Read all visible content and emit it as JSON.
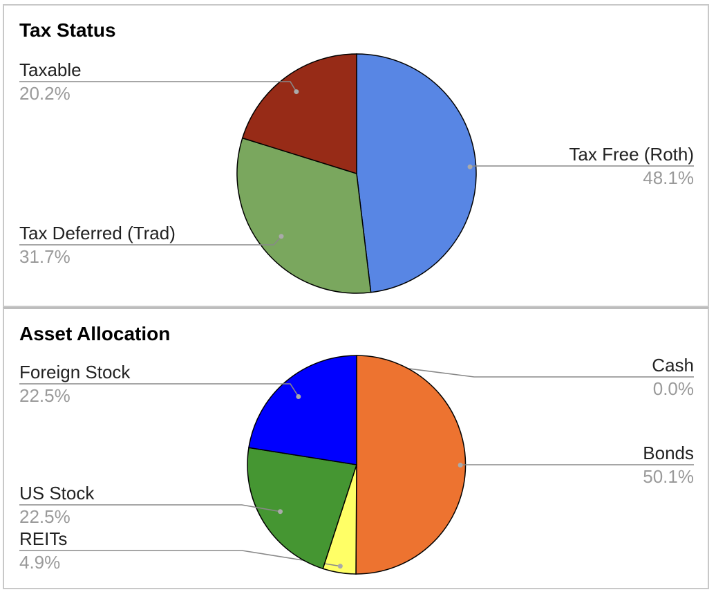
{
  "chart_data": [
    {
      "type": "pie",
      "title": "Tax Status",
      "slices": [
        {
          "label": "Tax Free (Roth)",
          "value": 48.1,
          "display": "48.1%",
          "color": "#5886e4"
        },
        {
          "label": "Tax Deferred (Trad)",
          "value": 31.7,
          "display": "31.7%",
          "color": "#7aa75e"
        },
        {
          "label": "Taxable",
          "value": 20.2,
          "display": "20.2%",
          "color": "#972b17"
        }
      ]
    },
    {
      "type": "pie",
      "title": "Asset Allocation",
      "slices": [
        {
          "label": "Cash",
          "value": 0.0,
          "display": "0.0%",
          "color": "#ffffff"
        },
        {
          "label": "Bonds",
          "value": 50.1,
          "display": "50.1%",
          "color": "#ed7330"
        },
        {
          "label": "REITs",
          "value": 4.9,
          "display": "4.9%",
          "color": "#ffff66"
        },
        {
          "label": "US Stock",
          "value": 22.5,
          "display": "22.5%",
          "color": "#459632"
        },
        {
          "label": "Foreign Stock",
          "value": 22.5,
          "display": "22.5%",
          "color": "#0000ff"
        }
      ]
    }
  ]
}
